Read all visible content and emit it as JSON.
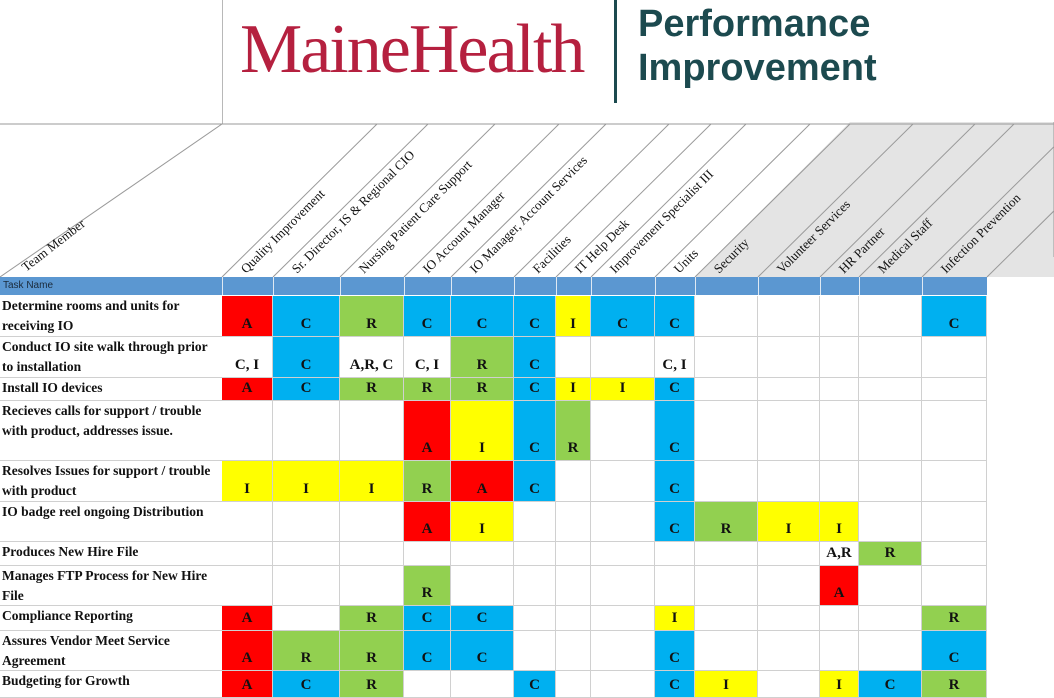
{
  "brand": {
    "name": "MaineHealth",
    "department_line1": "Performance",
    "department_line2": "Improvement"
  },
  "corner_label": "Team Member",
  "task_header": "Task Name",
  "colors": {
    "red": "#ff0000",
    "blue": "#00b0f0",
    "green": "#92d050",
    "yellow": "#ffff00",
    "white": "#ffffff",
    "brand_red": "#b5203f",
    "brand_teal": "#1c4a4f",
    "header_bar": "#5b97d1"
  },
  "columns": [
    "Quality Improvement",
    "Sr. Director, IS & Regional CIO",
    "Nursing Patient Care Support",
    "IO Account Manager",
    "IO Manager, Account Services",
    "Facilities",
    "IT Help Desk",
    "Improvement Specialist III",
    "Units",
    "Security",
    "Volunteer Services",
    "HR Partner",
    "Medical Staff",
    "Infection Prevention"
  ],
  "rows": [
    {
      "task": "Determine rooms and units for receiving IO",
      "cells": [
        [
          "A",
          "red"
        ],
        [
          "C",
          "blue"
        ],
        [
          "R",
          "green"
        ],
        [
          "C",
          "blue"
        ],
        [
          "C",
          "blue"
        ],
        [
          "C",
          "blue"
        ],
        [
          "I",
          "yellow"
        ],
        [
          "C",
          "blue"
        ],
        [
          "C",
          "blue"
        ],
        [
          "",
          ""
        ],
        [
          "",
          ""
        ],
        [
          "",
          ""
        ],
        [
          "",
          ""
        ],
        [
          "C",
          "blue"
        ]
      ]
    },
    {
      "task": "Conduct IO site walk through prior to installation",
      "cells": [
        [
          "C, I",
          ""
        ],
        [
          "C",
          "blue"
        ],
        [
          "A,R, C",
          ""
        ],
        [
          "C, I",
          ""
        ],
        [
          "R",
          "green"
        ],
        [
          "C",
          "blue"
        ],
        [
          "",
          ""
        ],
        [
          "",
          ""
        ],
        [
          "C, I",
          ""
        ],
        [
          "",
          ""
        ],
        [
          "",
          ""
        ],
        [
          "",
          ""
        ],
        [
          "",
          ""
        ],
        [
          "",
          ""
        ]
      ]
    },
    {
      "task": "Install IO devices",
      "cells": [
        [
          "A",
          "red"
        ],
        [
          "C",
          "blue"
        ],
        [
          "R",
          "green"
        ],
        [
          "R",
          "green"
        ],
        [
          "R",
          "green"
        ],
        [
          "C",
          "blue"
        ],
        [
          "I",
          "yellow"
        ],
        [
          "I",
          "yellow"
        ],
        [
          "C",
          "blue"
        ],
        [
          "",
          ""
        ],
        [
          "",
          ""
        ],
        [
          "",
          ""
        ],
        [
          "",
          ""
        ],
        [
          "",
          ""
        ]
      ]
    },
    {
      "task": "Recieves calls for support / trouble with product, addresses issue.",
      "cells": [
        [
          "",
          ""
        ],
        [
          "",
          ""
        ],
        [
          "",
          ""
        ],
        [
          "A",
          "red"
        ],
        [
          "I",
          "yellow"
        ],
        [
          "C",
          "blue"
        ],
        [
          "R",
          "green"
        ],
        [
          "",
          ""
        ],
        [
          "C",
          "blue"
        ],
        [
          "",
          ""
        ],
        [
          "",
          ""
        ],
        [
          "",
          ""
        ],
        [
          "",
          ""
        ],
        [
          "",
          ""
        ]
      ]
    },
    {
      "task": "Resolves Issues for support / trouble with product",
      "cells": [
        [
          "I",
          "yellow"
        ],
        [
          "I",
          "yellow"
        ],
        [
          "I",
          "yellow"
        ],
        [
          "R",
          "green"
        ],
        [
          "A",
          "red"
        ],
        [
          "C",
          "blue"
        ],
        [
          "",
          ""
        ],
        [
          "",
          ""
        ],
        [
          "C",
          "blue"
        ],
        [
          "",
          ""
        ],
        [
          "",
          ""
        ],
        [
          "",
          ""
        ],
        [
          "",
          ""
        ],
        [
          "",
          ""
        ]
      ]
    },
    {
      "task": "IO badge reel ongoing Distribution",
      "cells": [
        [
          "",
          ""
        ],
        [
          "",
          ""
        ],
        [
          "",
          ""
        ],
        [
          "A",
          "red"
        ],
        [
          "I",
          "yellow"
        ],
        [
          "",
          ""
        ],
        [
          "",
          ""
        ],
        [
          "",
          ""
        ],
        [
          "C",
          "blue"
        ],
        [
          "R",
          "green"
        ],
        [
          "I",
          "yellow"
        ],
        [
          "I",
          "yellow"
        ],
        [
          "",
          ""
        ],
        [
          "",
          ""
        ]
      ]
    },
    {
      "task": "Produces New Hire File",
      "cells": [
        [
          "",
          ""
        ],
        [
          "",
          ""
        ],
        [
          "",
          ""
        ],
        [
          "",
          ""
        ],
        [
          "",
          ""
        ],
        [
          "",
          ""
        ],
        [
          "",
          ""
        ],
        [
          "",
          ""
        ],
        [
          "",
          ""
        ],
        [
          "",
          ""
        ],
        [
          "",
          ""
        ],
        [
          "A,R",
          ""
        ],
        [
          "R",
          "green"
        ],
        [
          "",
          ""
        ]
      ]
    },
    {
      "task": "Manages FTP Process for New Hire File",
      "cells": [
        [
          "",
          ""
        ],
        [
          "",
          ""
        ],
        [
          "",
          ""
        ],
        [
          "R",
          "green"
        ],
        [
          "",
          ""
        ],
        [
          "",
          ""
        ],
        [
          "",
          ""
        ],
        [
          "",
          ""
        ],
        [
          "",
          ""
        ],
        [
          "",
          ""
        ],
        [
          "",
          ""
        ],
        [
          "A",
          "red"
        ],
        [
          "",
          ""
        ],
        [
          "",
          ""
        ]
      ]
    },
    {
      "task": "Compliance Reporting",
      "cells": [
        [
          "A",
          "red"
        ],
        [
          "",
          ""
        ],
        [
          "R",
          "green"
        ],
        [
          "C",
          "blue"
        ],
        [
          "C",
          "blue"
        ],
        [
          "",
          ""
        ],
        [
          "",
          ""
        ],
        [
          "",
          ""
        ],
        [
          "I",
          "yellow"
        ],
        [
          "",
          ""
        ],
        [
          "",
          ""
        ],
        [
          "",
          ""
        ],
        [
          "",
          ""
        ],
        [
          "R",
          "green"
        ]
      ]
    },
    {
      "task": "Assures Vendor Meet Service Agreement",
      "cells": [
        [
          "A",
          "red"
        ],
        [
          "R",
          "green"
        ],
        [
          "R",
          "green"
        ],
        [
          "C",
          "blue"
        ],
        [
          "C",
          "blue"
        ],
        [
          "",
          ""
        ],
        [
          "",
          ""
        ],
        [
          "",
          ""
        ],
        [
          "C",
          "blue"
        ],
        [
          "",
          ""
        ],
        [
          "",
          ""
        ],
        [
          "",
          ""
        ],
        [
          "",
          ""
        ],
        [
          "C",
          "blue"
        ]
      ]
    },
    {
      "task": "Budgeting for Growth",
      "cells": [
        [
          "A",
          "red"
        ],
        [
          "C",
          "blue"
        ],
        [
          "R",
          "green"
        ],
        [
          "",
          ""
        ],
        [
          "",
          ""
        ],
        [
          "C",
          "blue"
        ],
        [
          "",
          ""
        ],
        [
          "",
          ""
        ],
        [
          "C",
          "blue"
        ],
        [
          "I",
          "yellow"
        ],
        [
          "",
          ""
        ],
        [
          "I",
          "yellow"
        ],
        [
          "C",
          "blue"
        ],
        [
          "R",
          "green"
        ]
      ]
    }
  ]
}
